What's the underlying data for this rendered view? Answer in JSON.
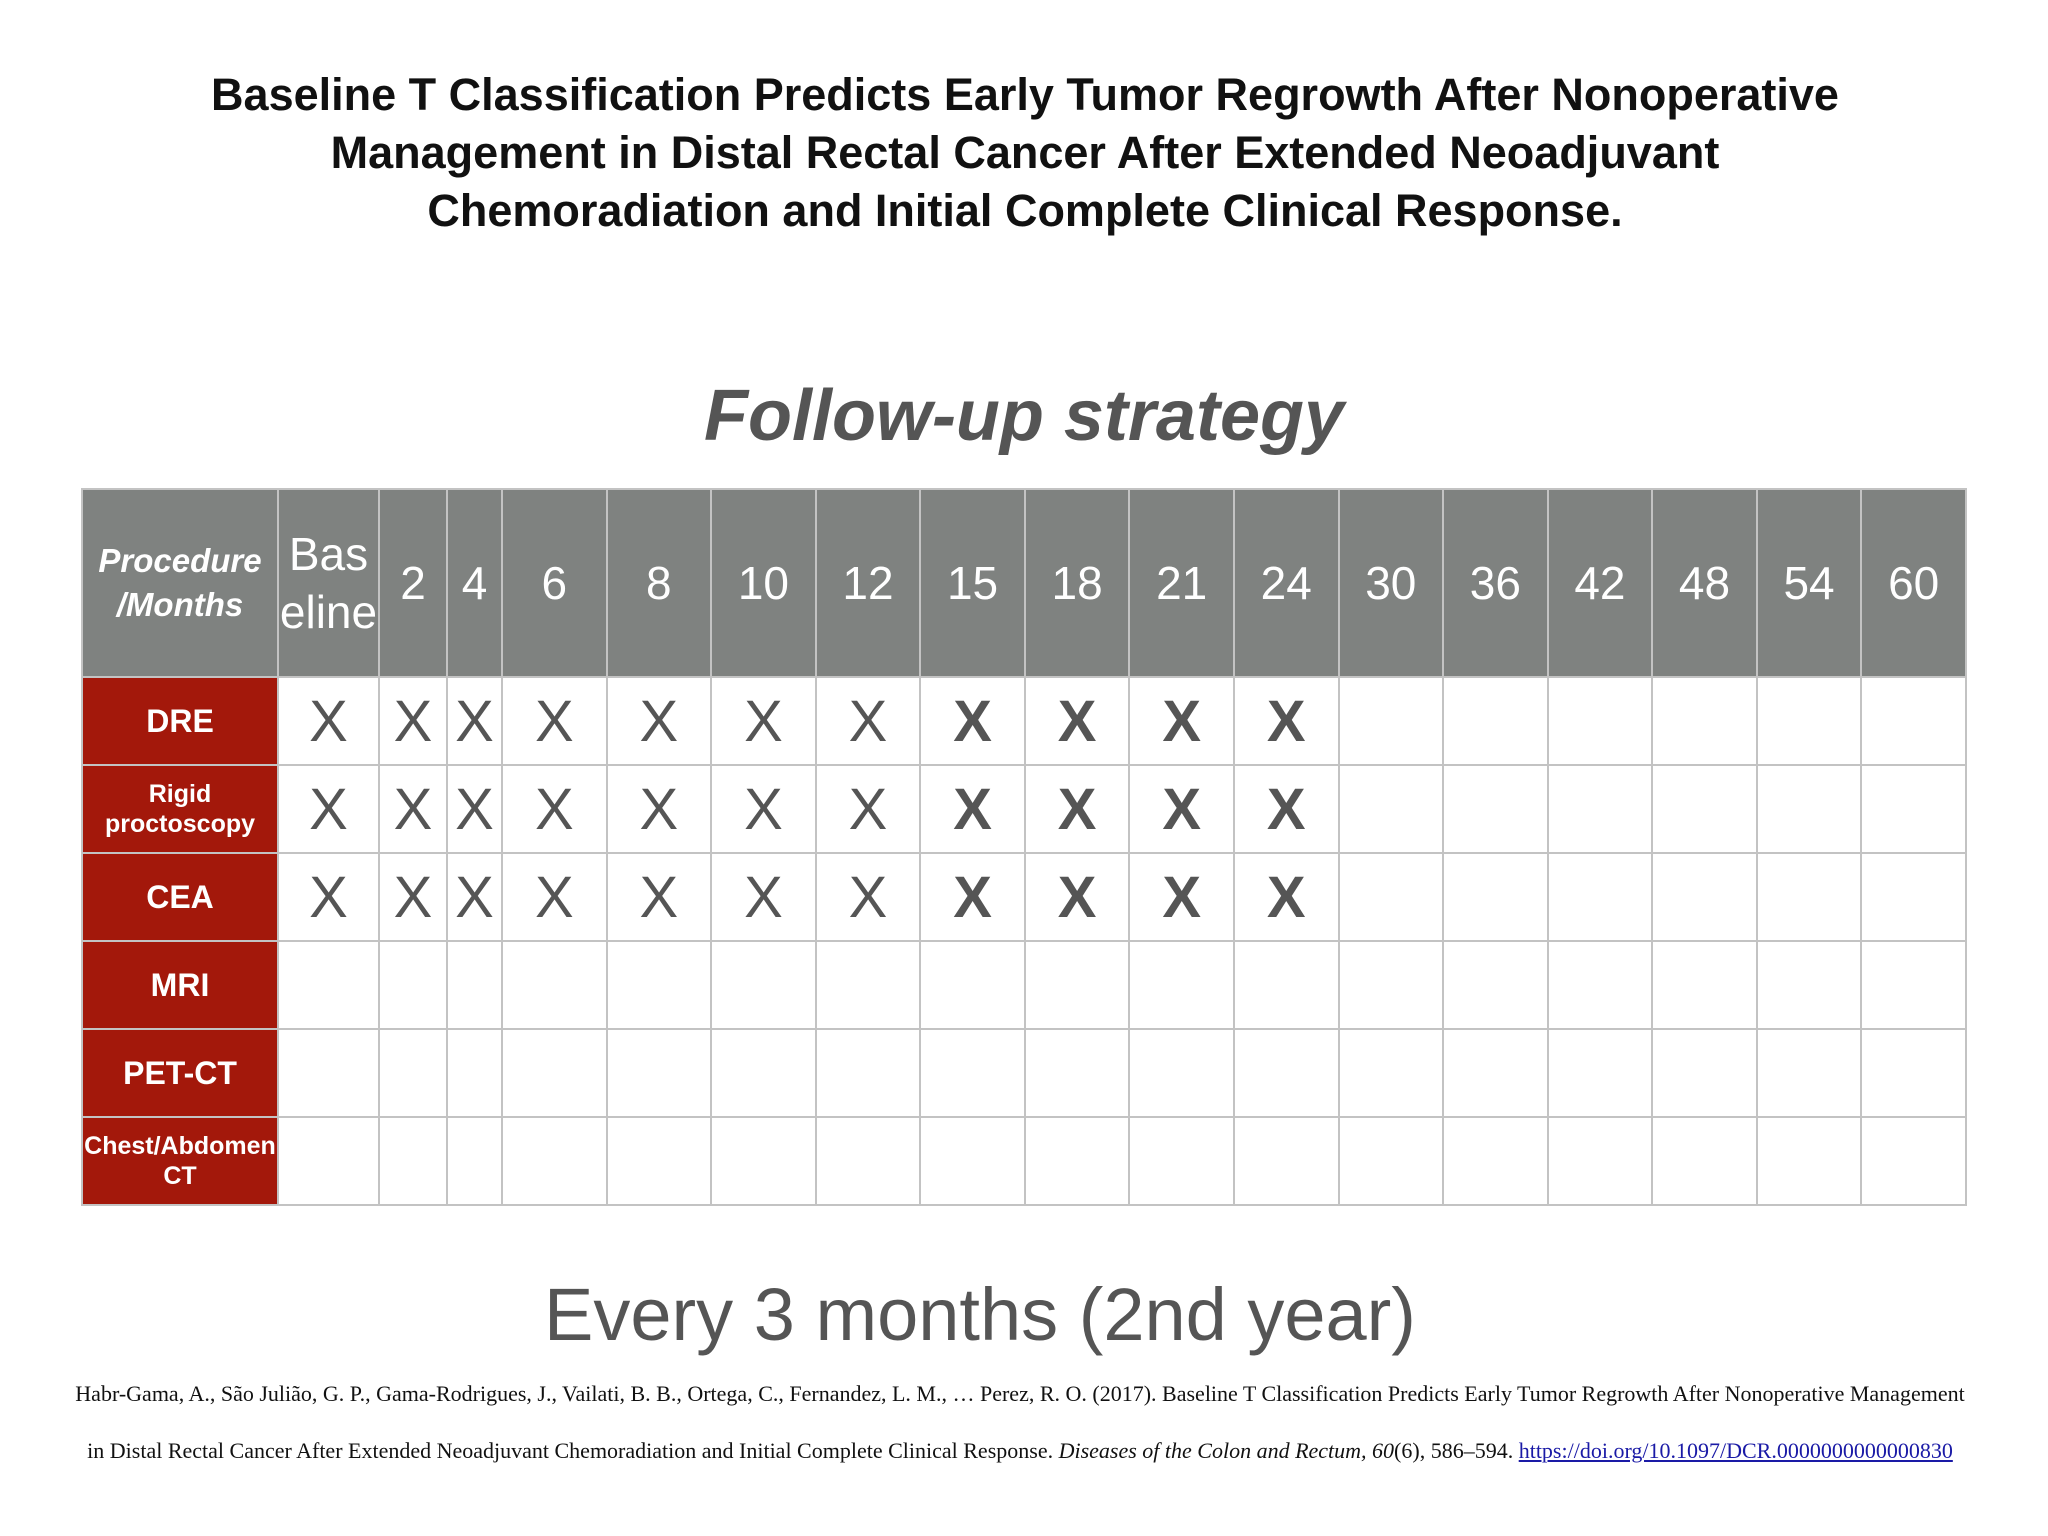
{
  "title": "Baseline T Classification Predicts Early Tumor Regrowth After Nonoperative Management in Distal Rectal Cancer After Extended Neoadjuvant Chemoradiation and Initial Complete Clinical Response.",
  "subtitle": "Follow-up strategy",
  "table": {
    "header": [
      "Procedure /Months",
      "Baseline",
      "2",
      "4",
      "6",
      "8",
      "10",
      "12",
      "15",
      "18",
      "21",
      "24",
      "30",
      "36",
      "42",
      "48",
      "54",
      "60"
    ],
    "rows": [
      {
        "label": "DRE",
        "cells": [
          "X",
          "X",
          "X",
          "X",
          "X",
          "X",
          "X",
          "X",
          "X",
          "X",
          "X",
          "",
          "",
          "",
          "",
          "",
          ""
        ]
      },
      {
        "label": "Rigid proctoscopy",
        "cells": [
          "X",
          "X",
          "X",
          "X",
          "X",
          "X",
          "X",
          "X",
          "X",
          "X",
          "X",
          "",
          "",
          "",
          "",
          "",
          ""
        ]
      },
      {
        "label": "CEA",
        "cells": [
          "X",
          "X",
          "X",
          "X",
          "X",
          "X",
          "X",
          "X",
          "X",
          "X",
          "X",
          "",
          "",
          "",
          "",
          "",
          ""
        ]
      },
      {
        "label": "MRI",
        "cells": [
          "",
          "",
          "",
          "",
          "",
          "",
          "",
          "",
          "",
          "",
          "",
          "",
          "",
          "",
          "",
          "",
          ""
        ]
      },
      {
        "label": "PET-CT",
        "cells": [
          "",
          "",
          "",
          "",
          "",
          "",
          "",
          "",
          "",
          "",
          "",
          "",
          "",
          "",
          "",
          "",
          ""
        ]
      },
      {
        "label": "Chest/Abdomen CT",
        "cells": [
          "",
          "",
          "",
          "",
          "",
          "",
          "",
          "",
          "",
          "",
          "",
          "",
          "",
          "",
          "",
          "",
          ""
        ]
      }
    ]
  },
  "caption": "Every 3 months (2nd year)",
  "citation": {
    "text": "Habr-Gama, A., São Julião, G. P., Gama-Rodrigues, J., Vailati, B. B., Ortega, C., Fernandez, L. M., … Perez, R. O. (2017). Baseline T Classification Predicts Early Tumor Regrowth After Nonoperative Management in Distal Rectal Cancer After Extended Neoadjuvant Chemoradiation and Initial Complete Clinical Response.",
    "journal": "Diseases of the Colon and Rectum,",
    "volume": "60",
    "pages": "(6), 586–594.",
    "doi": "https://doi.org/10.1097/DCR.0000000000000830"
  }
}
